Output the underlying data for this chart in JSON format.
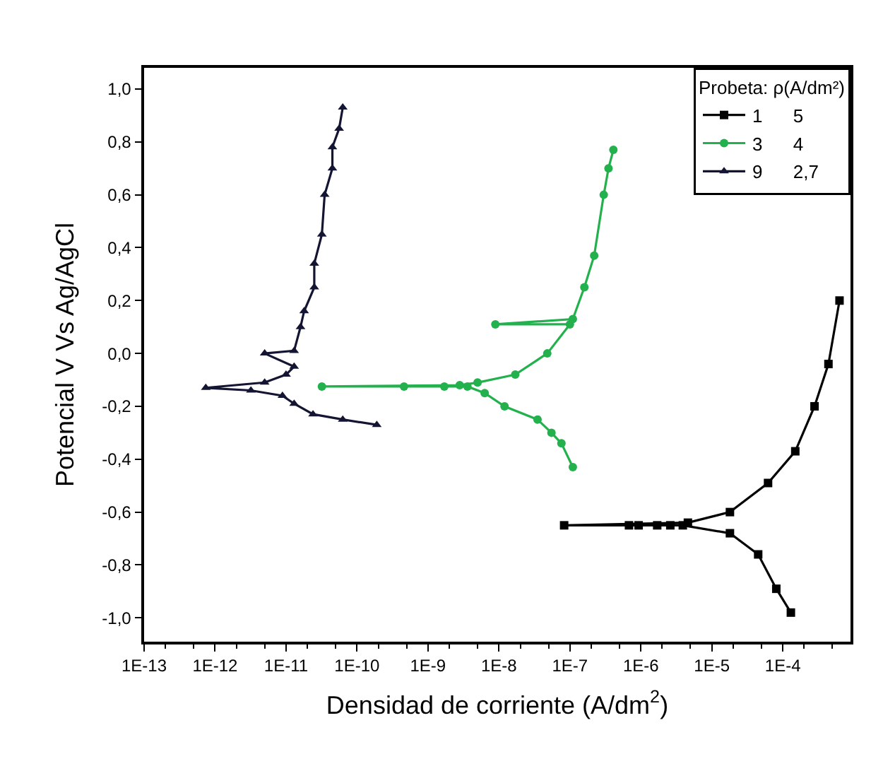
{
  "chart_data": {
    "type": "line",
    "xlabel": "Densidad de corriente (A/dm$^{2}$)",
    "ylabel": "Potencial V Vs Ag/AgCl",
    "legend_title": "Probeta: ρ(A/dm²)",
    "legend": "top right",
    "log": "x",
    "xlim": [
      1e-13,
      0.0009
    ],
    "xticks": [
      {
        "value": 1e-13,
        "label": "1E-13"
      },
      {
        "value": 1e-12,
        "label": "1E-12"
      },
      {
        "value": 1e-11,
        "label": "1E-11"
      },
      {
        "value": 1e-10,
        "label": "1E-10"
      },
      {
        "value": 1e-09,
        "label": "1E-9"
      },
      {
        "value": 1e-08,
        "label": "1E-8"
      },
      {
        "value": 1e-07,
        "label": "1E-7"
      },
      {
        "value": 1e-06,
        "label": "1E-6"
      },
      {
        "value": 1e-05,
        "label": "1E-5"
      },
      {
        "value": 0.0001,
        "label": "1E-4"
      }
    ],
    "ylim": [
      -1.09,
      1.08
    ],
    "yticks": [
      {
        "value": -1.0,
        "label": "-1,0"
      },
      {
        "value": -0.8,
        "label": "-0,8"
      },
      {
        "value": -0.6,
        "label": "-0,6"
      },
      {
        "value": -0.4,
        "label": "-0,4"
      },
      {
        "value": -0.2,
        "label": "-0,2"
      },
      {
        "value": 0.0,
        "label": "0,0"
      },
      {
        "value": 0.2,
        "label": "0,2"
      },
      {
        "value": 0.4,
        "label": "0,4"
      },
      {
        "value": 0.6,
        "label": "0,6"
      },
      {
        "value": 0.8,
        "label": "0,8"
      },
      {
        "value": 1.0,
        "label": "1,0"
      }
    ],
    "series": [
      {
        "name": "1      5",
        "color": "#000000",
        "marker": "square",
        "x": [
          0.00013,
          8.1e-05,
          4.5e-05,
          1.8e-05,
          3.9e-06,
          2.6e-06,
          1.7e-06,
          9.3e-07,
          6.8e-07,
          8.3e-08,
          4.6e-06,
          1.8e-05,
          6.2e-05,
          0.00015,
          0.00028,
          0.00044,
          0.00063
        ],
        "values": [
          -0.98,
          -0.89,
          -0.76,
          -0.68,
          -0.65,
          -0.65,
          -0.65,
          -0.65,
          -0.65,
          -0.65,
          -0.64,
          -0.6,
          -0.49,
          -0.37,
          -0.2,
          -0.04,
          0.2
        ]
      },
      {
        "name": "3      4",
        "color": "#22b14c",
        "marker": "circle",
        "x": [
          1.1e-07,
          7.6e-08,
          5.5e-08,
          3.5e-08,
          1.2e-08,
          6.3e-09,
          3.6e-09,
          1.7e-09,
          4.6e-10,
          3.2e-11,
          2.8e-09,
          5e-09,
          1.7e-08,
          4.8e-08,
          1e-07,
          8.9e-09,
          1.1e-07,
          1.6e-07,
          2.2e-07,
          3e-07,
          3.5e-07,
          4.1e-07
        ],
        "values": [
          -0.43,
          -0.34,
          -0.3,
          -0.25,
          -0.2,
          -0.15,
          -0.125,
          -0.125,
          -0.125,
          -0.125,
          -0.12,
          -0.11,
          -0.08,
          0.0,
          0.11,
          0.11,
          0.13,
          0.25,
          0.37,
          0.6,
          0.7,
          0.77
        ]
      },
      {
        "name": "9      2,7",
        "color": "#141433",
        "marker": "triangle",
        "x": [
          1.9e-10,
          6.3e-11,
          2.4e-11,
          1.3e-11,
          8.9e-12,
          3.2e-12,
          7.4e-13,
          5e-12,
          1e-11,
          1.3e-11,
          5e-12,
          1.3e-11,
          1.6e-11,
          1.8e-11,
          2.5e-11,
          2.5e-11,
          3.2e-11,
          3.5e-11,
          4.5e-11,
          4.5e-11,
          5.6e-11,
          6.3e-11
        ],
        "values": [
          -0.27,
          -0.25,
          -0.23,
          -0.19,
          -0.16,
          -0.14,
          -0.13,
          -0.11,
          -0.08,
          -0.05,
          0.0,
          0.01,
          0.1,
          0.16,
          0.25,
          0.34,
          0.45,
          0.6,
          0.7,
          0.78,
          0.85,
          0.93
        ]
      }
    ]
  }
}
